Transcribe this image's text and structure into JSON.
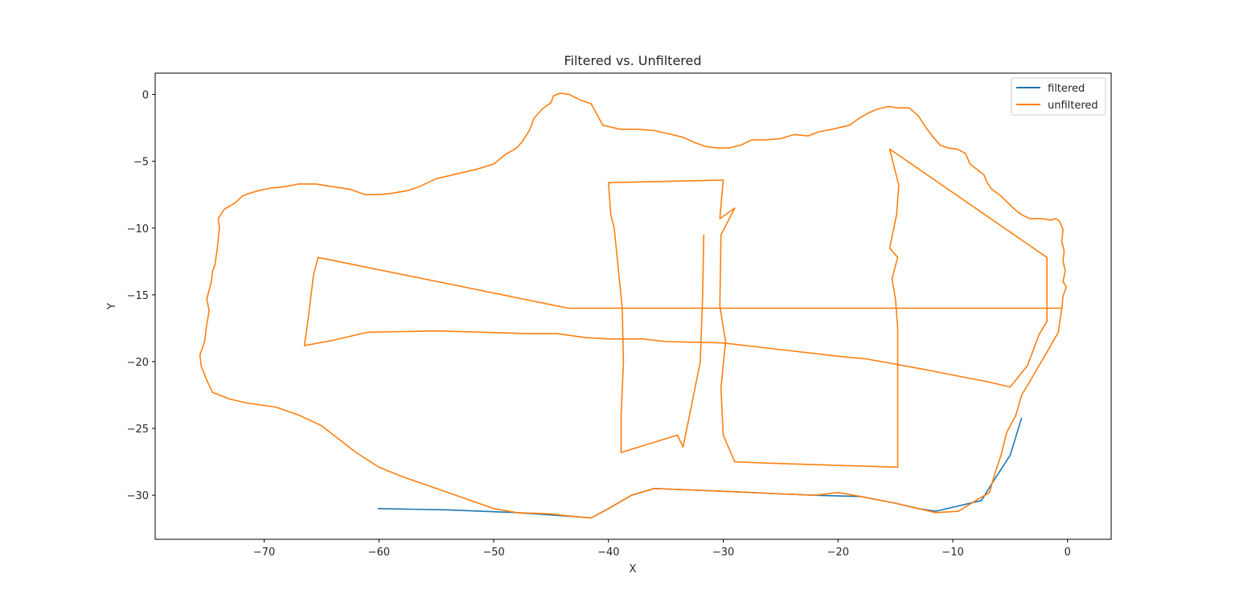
{
  "chart_data": {
    "type": "line",
    "title": "Filtered vs. Unfiltered",
    "xlabel": "X",
    "ylabel": "Y",
    "xlim": [
      -79.5,
      3.8
    ],
    "ylim": [
      -33.3,
      1.6
    ],
    "xticks": [
      -70,
      -60,
      -50,
      -40,
      -30,
      -20,
      -10,
      0
    ],
    "yticks": [
      0,
      -5,
      -10,
      -15,
      -20,
      -25,
      -30
    ],
    "grid": false,
    "legend_position": "top-right",
    "series": [
      {
        "name": "filtered",
        "color": "#1f77b4",
        "points": [
          [
            -60.1,
            -31.0
          ],
          [
            -54,
            -31.1
          ],
          [
            -48,
            -31.3
          ],
          [
            -43,
            -31.6
          ],
          [
            -41.5,
            -31.7
          ],
          [
            -40,
            -31.0
          ],
          [
            -38,
            -30.0
          ],
          [
            -36,
            -29.5
          ],
          [
            -33,
            -29.6
          ],
          [
            -30,
            -29.7
          ],
          [
            -25,
            -29.9
          ],
          [
            -22,
            -30.0
          ],
          [
            -18,
            -30.1
          ],
          [
            -15,
            -30.6
          ],
          [
            -13,
            -31.0
          ],
          [
            -11.5,
            -31.2
          ],
          [
            -7.5,
            -30.4
          ],
          [
            -6.5,
            -29.0
          ],
          [
            -5,
            -27
          ],
          [
            -4,
            -24.2
          ]
        ]
      },
      {
        "name": "unfiltered",
        "color": "#ff7f0e",
        "points": [
          [
            -0.5,
            -16.0
          ],
          [
            -0.8,
            -17.8
          ],
          [
            -1.6,
            -19.0
          ],
          [
            -2.5,
            -20.3
          ],
          [
            -3.3,
            -21.5
          ],
          [
            -4.0,
            -22.5
          ],
          [
            -4.5,
            -24.0
          ],
          [
            -5.3,
            -25.3
          ],
          [
            -5.8,
            -27.0
          ],
          [
            -6.3,
            -28.3
          ],
          [
            -6.8,
            -29.8
          ],
          [
            -8.0,
            -30.4
          ],
          [
            -9.5,
            -31.2
          ],
          [
            -11.5,
            -31.3
          ],
          [
            -13,
            -31.0
          ],
          [
            -15,
            -30.6
          ],
          [
            -18,
            -30.1
          ],
          [
            -20,
            -29.8
          ],
          [
            -22,
            -30.0
          ],
          [
            -25,
            -29.9
          ],
          [
            -30,
            -29.7
          ],
          [
            -33,
            -29.6
          ],
          [
            -36,
            -29.5
          ],
          [
            -38,
            -30.0
          ],
          [
            -40,
            -31.0
          ],
          [
            -41.5,
            -31.7
          ],
          [
            -43,
            -31.6
          ],
          [
            -45,
            -31.4
          ],
          [
            -48,
            -31.3
          ],
          [
            -50,
            -31.0
          ],
          [
            -52,
            -30.4
          ],
          [
            -55,
            -29.5
          ],
          [
            -58,
            -28.6
          ],
          [
            -60,
            -27.9
          ],
          [
            -62,
            -26.8
          ],
          [
            -63.5,
            -25.8
          ],
          [
            -65,
            -24.8
          ],
          [
            -67,
            -24.0
          ],
          [
            -69,
            -23.4
          ],
          [
            -71.5,
            -23.1
          ],
          [
            -73,
            -22.8
          ],
          [
            -74.5,
            -22.3
          ],
          [
            -75,
            -21.4
          ],
          [
            -75.5,
            -20.3
          ],
          [
            -75.6,
            -19.5
          ],
          [
            -75.2,
            -18.5
          ],
          [
            -75.0,
            -17.2
          ],
          [
            -74.8,
            -16.2
          ],
          [
            -75.0,
            -15.3
          ],
          [
            -74.6,
            -14.0
          ],
          [
            -74.5,
            -13.2
          ],
          [
            -74.3,
            -12.8
          ],
          [
            -74.1,
            -11.6
          ],
          [
            -73.9,
            -10.0
          ],
          [
            -74.0,
            -9.3
          ],
          [
            -73.5,
            -8.6
          ],
          [
            -72.5,
            -8.1
          ],
          [
            -71.9,
            -7.6
          ],
          [
            -71.3,
            -7.4
          ],
          [
            -70.5,
            -7.2
          ],
          [
            -69.4,
            -7.0
          ],
          [
            -68.2,
            -6.9
          ],
          [
            -67,
            -6.7
          ],
          [
            -65.5,
            -6.7
          ],
          [
            -64,
            -6.9
          ],
          [
            -62.5,
            -7.1
          ],
          [
            -61.2,
            -7.5
          ],
          [
            -59.9,
            -7.5
          ],
          [
            -58.9,
            -7.4
          ],
          [
            -57.5,
            -7.2
          ],
          [
            -56.5,
            -6.9
          ],
          [
            -55.0,
            -6.3
          ],
          [
            -53.5,
            -6.0
          ],
          [
            -51.5,
            -5.6
          ],
          [
            -50.0,
            -5.2
          ],
          [
            -49.0,
            -4.5
          ],
          [
            -48.0,
            -4.0
          ],
          [
            -47.5,
            -3.5
          ],
          [
            -46.9,
            -2.7
          ],
          [
            -46.5,
            -1.8
          ],
          [
            -45.8,
            -1.1
          ],
          [
            -45.0,
            -0.6
          ],
          [
            -44.8,
            -0.1
          ],
          [
            -44.2,
            0.1
          ],
          [
            -43.4,
            0.0
          ],
          [
            -42.5,
            -0.4
          ],
          [
            -41.5,
            -0.7
          ],
          [
            -41.0,
            -1.5
          ],
          [
            -40.5,
            -2.3
          ],
          [
            -39.0,
            -2.6
          ],
          [
            -37.5,
            -2.6
          ],
          [
            -36.0,
            -2.7
          ],
          [
            -34.5,
            -3.0
          ],
          [
            -33.5,
            -3.2
          ],
          [
            -32.5,
            -3.6
          ],
          [
            -31.5,
            -3.9
          ],
          [
            -30.5,
            -4.0
          ],
          [
            -29.5,
            -4.0
          ],
          [
            -28.5,
            -3.8
          ],
          [
            -27.5,
            -3.4
          ],
          [
            -26.3,
            -3.4
          ],
          [
            -25.0,
            -3.3
          ],
          [
            -23.8,
            -3.0
          ],
          [
            -22.6,
            -3.1
          ],
          [
            -21.7,
            -2.8
          ],
          [
            -20.5,
            -2.6
          ],
          [
            -19.0,
            -2.3
          ],
          [
            -18.2,
            -1.8
          ],
          [
            -17.4,
            -1.4
          ],
          [
            -16.6,
            -1.1
          ],
          [
            -15.6,
            -0.9
          ],
          [
            -14.8,
            -1.0
          ],
          [
            -13.8,
            -1.0
          ],
          [
            -13.0,
            -1.6
          ],
          [
            -12.4,
            -2.4
          ],
          [
            -11.8,
            -3.1
          ],
          [
            -11.1,
            -3.8
          ],
          [
            -10.4,
            -4.0
          ],
          [
            -9.6,
            -4.1
          ],
          [
            -8.9,
            -4.4
          ],
          [
            -8.5,
            -5.2
          ],
          [
            -7.9,
            -5.6
          ],
          [
            -7.3,
            -6.0
          ],
          [
            -7.0,
            -6.6
          ],
          [
            -6.6,
            -7.1
          ],
          [
            -5.8,
            -7.6
          ],
          [
            -5.2,
            -8.1
          ],
          [
            -4.6,
            -8.6
          ],
          [
            -4.0,
            -9.0
          ],
          [
            -3.3,
            -9.3
          ],
          [
            -2.2,
            -9.3
          ],
          [
            -1.5,
            -9.4
          ],
          [
            -1.0,
            -9.3
          ],
          [
            -0.7,
            -9.5
          ],
          [
            -0.4,
            -10.1
          ],
          [
            -0.5,
            -11.0
          ],
          [
            -0.3,
            -11.7
          ],
          [
            -0.4,
            -12.5
          ],
          [
            -0.2,
            -13.2
          ],
          [
            -0.4,
            -14.0
          ],
          [
            -0.1,
            -14.4
          ],
          [
            -0.4,
            -15.1
          ],
          [
            -0.5,
            -16.0
          ],
          [
            -43.5,
            -16.0
          ],
          [
            -65.3,
            -12.2
          ],
          [
            -65.7,
            -13.5
          ],
          [
            -66.2,
            -17.0
          ],
          [
            -66.5,
            -18.8
          ],
          [
            -64,
            -18.4
          ],
          [
            -61,
            -17.8
          ],
          [
            -55,
            -17.7
          ],
          [
            -47,
            -17.9
          ],
          [
            -44.5,
            -17.9
          ],
          [
            -42,
            -18.2
          ],
          [
            -40,
            -18.3
          ],
          [
            -37,
            -18.3
          ],
          [
            -35,
            -18.5
          ],
          [
            -30,
            -18.6
          ],
          [
            -25,
            -19.1
          ],
          [
            -20,
            -19.6
          ],
          [
            -17.5,
            -19.8
          ],
          [
            -13,
            -20.5
          ],
          [
            -10,
            -21.0
          ],
          [
            -7,
            -21.5
          ],
          [
            -5,
            -21.9
          ],
          [
            -3.5,
            -20.3
          ],
          [
            -2.5,
            -18.0
          ],
          [
            -1.8,
            -17.0
          ],
          [
            -1.8,
            -15.5
          ],
          [
            -1.8,
            -12.2
          ],
          [
            -15.3,
            -4.2
          ],
          [
            -15.5,
            -4.1
          ],
          [
            -14.7,
            -6.8
          ],
          [
            -14.9,
            -9.0
          ],
          [
            -15.5,
            -11.5
          ],
          [
            -14.8,
            -12.2
          ],
          [
            -15.3,
            -13.8
          ],
          [
            -15.0,
            -15.3
          ],
          [
            -14.8,
            -17.5
          ],
          [
            -14.8,
            -20.0
          ],
          [
            -14.8,
            -27.9
          ],
          [
            -26.0,
            -27.6
          ],
          [
            -29.0,
            -27.5
          ],
          [
            -30.0,
            -25.5
          ],
          [
            -30.2,
            -22.0
          ],
          [
            -29.8,
            -18.5
          ],
          [
            -30.3,
            -15.8
          ],
          [
            -30.2,
            -10.5
          ],
          [
            -29.0,
            -8.5
          ],
          [
            -30.3,
            -9.3
          ],
          [
            -30.0,
            -6.4
          ],
          [
            -40.0,
            -6.6
          ],
          [
            -39.8,
            -9.0
          ],
          [
            -39.5,
            -10.0
          ],
          [
            -38.8,
            -16.0
          ],
          [
            -38.7,
            -20.0
          ],
          [
            -38.9,
            -24.0
          ],
          [
            -38.9,
            -26.8
          ],
          [
            -34.0,
            -25.5
          ],
          [
            -33.5,
            -26.4
          ],
          [
            -32.0,
            -20.0
          ],
          [
            -31.8,
            -15.0
          ],
          [
            -31.7,
            -10.5
          ]
        ]
      }
    ]
  }
}
